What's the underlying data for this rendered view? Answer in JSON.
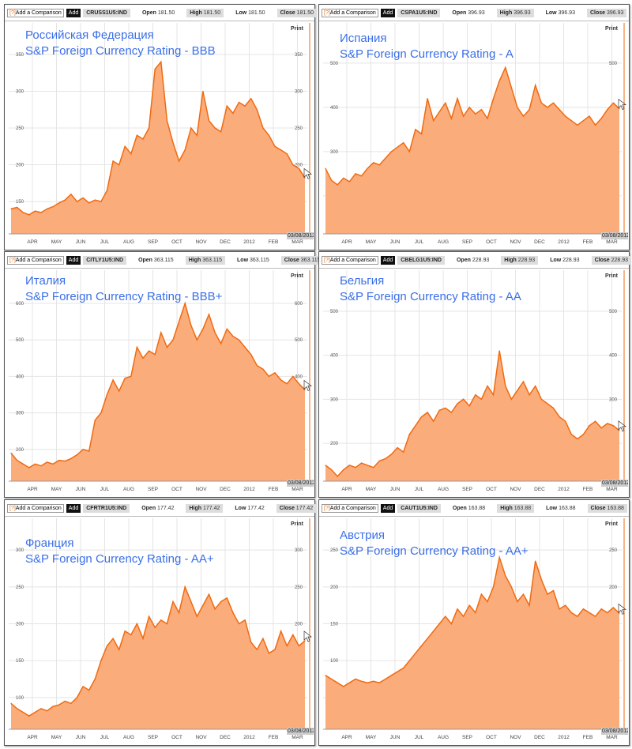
{
  "colors": {
    "line": "#f06a10",
    "fill": "#fbac7b",
    "title": "#3a6fe8",
    "grid": "#e4e4e4"
  },
  "ui": {
    "add_comparison": "Add a Comparison",
    "help": "[?]",
    "add": "Add",
    "print": "Print",
    "open": "Open",
    "high": "High",
    "low": "Low",
    "close": "Close",
    "date": "03/08/2012"
  },
  "chart_data": [
    {
      "type": "area",
      "ticker": "CRUSS1U5:IND",
      "open": "181.50",
      "high": "181.50",
      "low": "181.50",
      "close": "181.50",
      "title": "Российская Федерация",
      "subtitle": "S&P Foreign Currency Rating - BBB",
      "ylim": [
        106,
        393
      ],
      "yticks": [
        150,
        200,
        250,
        300,
        350
      ],
      "xlabels": [
        "APR",
        "MAY",
        "JUN",
        "JUL",
        "AUG",
        "SEP",
        "OCT",
        "NOV",
        "DEC",
        "2012",
        "FEB",
        "MAR"
      ],
      "values": [
        140,
        142,
        135,
        132,
        137,
        135,
        140,
        143,
        148,
        152,
        160,
        150,
        155,
        148,
        152,
        150,
        165,
        205,
        200,
        225,
        215,
        240,
        235,
        250,
        330,
        340,
        260,
        230,
        205,
        220,
        250,
        240,
        300,
        260,
        250,
        245,
        280,
        270,
        285,
        280,
        290,
        275,
        250,
        240,
        225,
        220,
        215,
        200,
        195,
        182
      ]
    },
    {
      "type": "area",
      "ticker": "CSPA1U5:IND",
      "open": "396.93",
      "high": "396.93",
      "low": "396.93",
      "close": "396.93",
      "title": "Испания",
      "subtitle": "S&P Foreign Currency Rating - A",
      "ylim": [
        114,
        591
      ],
      "yticks": [
        200,
        300,
        400,
        500
      ],
      "xlabels": [
        "APR",
        "MAY",
        "JUN",
        "JUL",
        "AUG",
        "SEP",
        "OCT",
        "NOV",
        "DEC",
        "2012",
        "FEB",
        "MAR"
      ],
      "values": [
        262,
        235,
        225,
        240,
        232,
        250,
        245,
        262,
        275,
        270,
        285,
        300,
        310,
        320,
        300,
        350,
        340,
        420,
        370,
        390,
        410,
        375,
        420,
        380,
        400,
        385,
        395,
        375,
        420,
        460,
        490,
        445,
        400,
        380,
        395,
        450,
        410,
        400,
        410,
        395,
        380,
        370,
        360,
        370,
        380,
        360,
        375,
        395,
        410,
        397
      ]
    },
    {
      "type": "area",
      "ticker": "CITLY1U5:IND",
      "open": "363.115",
      "high": "363.115",
      "low": "363.115",
      "close": "363.115",
      "title": "Италия",
      "subtitle": "S&P Foreign Currency Rating - BBB+",
      "ylim": [
        113,
        691
      ],
      "yticks": [
        200,
        300,
        400,
        500,
        600
      ],
      "xlabels": [
        "APR",
        "MAY",
        "JUN",
        "JUL",
        "AUG",
        "SEP",
        "OCT",
        "NOV",
        "DEC",
        "2012",
        "FEB",
        "MAR"
      ],
      "values": [
        190,
        170,
        160,
        150,
        160,
        155,
        165,
        160,
        170,
        168,
        175,
        185,
        200,
        195,
        280,
        300,
        350,
        390,
        360,
        395,
        400,
        480,
        450,
        470,
        460,
        520,
        480,
        500,
        550,
        600,
        540,
        500,
        530,
        570,
        520,
        490,
        530,
        510,
        500,
        480,
        460,
        430,
        420,
        400,
        410,
        390,
        380,
        400,
        380,
        363
      ]
    },
    {
      "type": "area",
      "ticker": "CBELG1U5:IND",
      "open": "228.93",
      "high": "228.93",
      "low": "228.93",
      "close": "228.93",
      "title": "Бельгия",
      "subtitle": "S&P Foreign Currency Rating - AA",
      "ylim": [
        114,
        593
      ],
      "yticks": [
        200,
        300,
        400,
        500
      ],
      "xlabels": [
        "APR",
        "MAY",
        "JUN",
        "JUL",
        "AUG",
        "SEP",
        "OCT",
        "NOV",
        "DEC",
        "2012",
        "FEB",
        "MAR"
      ],
      "values": [
        150,
        140,
        125,
        140,
        150,
        145,
        155,
        150,
        145,
        160,
        165,
        175,
        190,
        180,
        220,
        240,
        260,
        270,
        250,
        275,
        280,
        270,
        290,
        300,
        285,
        310,
        300,
        330,
        310,
        410,
        330,
        300,
        320,
        340,
        310,
        330,
        300,
        290,
        280,
        260,
        250,
        220,
        210,
        220,
        240,
        250,
        235,
        245,
        240,
        229
      ]
    },
    {
      "type": "area",
      "ticker": "CFRTR1U5:IND",
      "open": "177.42",
      "high": "177.42",
      "low": "177.42",
      "close": "177.42",
      "title": "Франция",
      "subtitle": "S&P Foreign Currency Rating - AA+",
      "ylim": [
        57,
        343
      ],
      "yticks": [
        100,
        150,
        200,
        250,
        300
      ],
      "xlabels": [
        "APR",
        "MAY",
        "JUN",
        "JUL",
        "AUG",
        "SEP",
        "OCT",
        "NOV",
        "DEC",
        "2012",
        "FEB",
        "MAR"
      ],
      "values": [
        92,
        85,
        80,
        75,
        80,
        85,
        82,
        88,
        90,
        95,
        92,
        100,
        115,
        110,
        125,
        150,
        170,
        180,
        165,
        190,
        185,
        200,
        180,
        210,
        195,
        205,
        200,
        230,
        215,
        250,
        230,
        210,
        225,
        240,
        220,
        230,
        235,
        215,
        200,
        205,
        175,
        165,
        180,
        160,
        165,
        190,
        170,
        185,
        170,
        177
      ]
    },
    {
      "type": "area",
      "ticker": "CAUT1U5:IND",
      "open": "163.88",
      "high": "163.88",
      "low": "163.88",
      "close": "163.88",
      "title": "Австрия",
      "subtitle": "S&P Foreign Currency Rating - AA+",
      "ylim": [
        7,
        293
      ],
      "yticks": [
        50,
        100,
        150,
        200,
        250
      ],
      "xlabels": [
        "APR",
        "MAY",
        "JUN",
        "JUL",
        "AUG",
        "SEP",
        "OCT",
        "NOV",
        "DEC",
        "2012",
        "FEB",
        "MAR"
      ],
      "values": [
        80,
        75,
        70,
        65,
        70,
        75,
        72,
        70,
        72,
        70,
        75,
        80,
        85,
        90,
        100,
        110,
        120,
        130,
        140,
        150,
        160,
        150,
        170,
        160,
        175,
        165,
        190,
        180,
        200,
        240,
        215,
        200,
        180,
        190,
        175,
        235,
        210,
        190,
        195,
        170,
        175,
        165,
        160,
        170,
        165,
        160,
        170,
        165,
        172,
        164
      ]
    }
  ]
}
